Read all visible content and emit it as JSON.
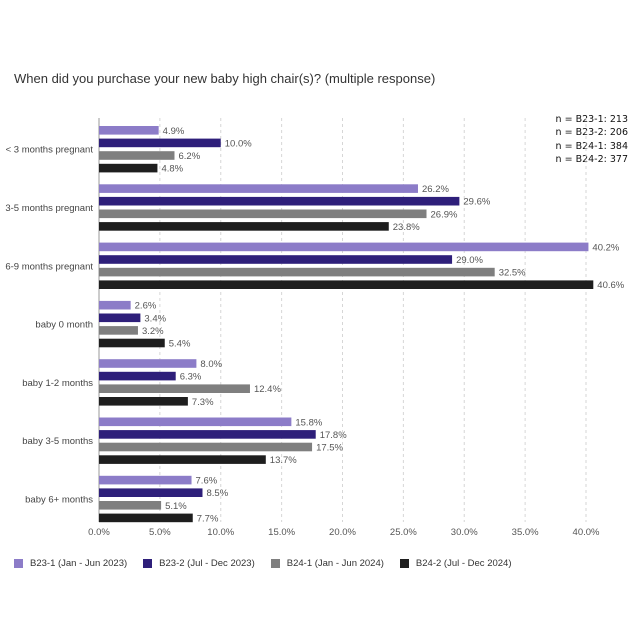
{
  "chart_data": {
    "type": "bar",
    "orientation": "horizontal",
    "title": "When did you purchase your new baby high chair(s)? (multiple response)",
    "xlabel": "",
    "ylabel": "",
    "xlim": [
      0,
      40
    ],
    "x_ticks": [
      "0.0%",
      "5.0%",
      "10.0%",
      "15.0%",
      "20.0%",
      "25.0%",
      "30.0%",
      "35.0%",
      "40.0%"
    ],
    "grid": "vertical dashed",
    "legend_position": "bottom",
    "categories": [
      "< 3 months pregnant",
      "3-5 months pregnant",
      "6-9 months pregnant",
      "baby 0 month",
      "baby 1-2 months",
      "baby 3-5 months",
      "baby 6+ months"
    ],
    "series": [
      {
        "name": "B23-1 (Jan - Jun 2023)",
        "color": "#8c7cc8",
        "values": [
          4.9,
          26.2,
          40.2,
          2.6,
          8.0,
          15.8,
          7.6
        ],
        "labels": [
          "4.9%",
          "26.2%",
          "40.2%",
          "2.6%",
          "8.0%",
          "15.8%",
          "7.6%"
        ]
      },
      {
        "name": "B23-2 (Jul - Dec 2023)",
        "color": "#2e1f7a",
        "values": [
          10.0,
          29.6,
          29.0,
          3.4,
          6.3,
          17.8,
          8.5
        ],
        "labels": [
          "10.0%",
          "29.6%",
          "29.0%",
          "3.4%",
          "6.3%",
          "17.8%",
          "8.5%"
        ]
      },
      {
        "name": "B24-1 (Jan - Jun 2024)",
        "color": "#7f7f7f",
        "values": [
          6.2,
          26.9,
          32.5,
          3.2,
          12.4,
          17.5,
          5.1
        ],
        "labels": [
          "6.2%",
          "26.9%",
          "32.5%",
          "3.2%",
          "12.4%",
          "17.5%",
          "5.1%"
        ]
      },
      {
        "name": "B24-2 (Jul - Dec 2024)",
        "color": "#1e1e1e",
        "values": [
          4.8,
          23.8,
          40.6,
          5.4,
          7.3,
          13.7,
          7.7
        ],
        "labels": [
          "4.8%",
          "23.8%",
          "40.6%",
          "5.4%",
          "7.3%",
          "13.7%",
          "7.7%"
        ]
      }
    ],
    "sample_sizes": [
      "n = B23-1: 213",
      "n = B23-2: 206",
      "n = B24-1: 384",
      "n = B24-2: 377"
    ]
  }
}
